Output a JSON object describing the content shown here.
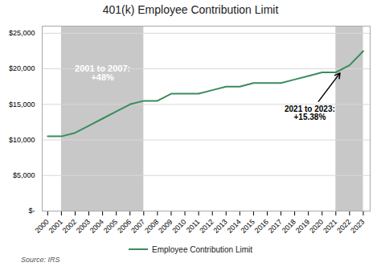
{
  "chart_data": {
    "type": "line",
    "title": "401(k) Employee Contribution Limit",
    "x": [
      2000,
      2001,
      2002,
      2003,
      2004,
      2005,
      2006,
      2007,
      2008,
      2009,
      2010,
      2011,
      2012,
      2013,
      2014,
      2015,
      2016,
      2017,
      2018,
      2019,
      2020,
      2021,
      2022,
      2023
    ],
    "series": [
      {
        "name": "Employee Contribution Limit",
        "color": "#3a8c5c",
        "values": [
          10500,
          10500,
          11000,
          12000,
          13000,
          14000,
          15000,
          15500,
          15500,
          16500,
          16500,
          16500,
          17000,
          17500,
          17500,
          18000,
          18000,
          18000,
          18500,
          19000,
          19500,
          19500,
          20500,
          22500
        ]
      }
    ],
    "xlim": [
      1999.6,
      2023.5
    ],
    "xticks": [
      2000,
      2001,
      2002,
      2003,
      2004,
      2005,
      2006,
      2007,
      2008,
      2009,
      2010,
      2011,
      2012,
      2013,
      2014,
      2015,
      2016,
      2017,
      2018,
      2019,
      2020,
      2021,
      2022,
      2023
    ],
    "ylim": [
      0,
      26000
    ],
    "yticks": [
      {
        "value": 0,
        "label": "$-"
      },
      {
        "value": 5000,
        "label": "$5,000"
      },
      {
        "value": 10000,
        "label": "$10,000"
      },
      {
        "value": 15000,
        "label": "$15,000"
      },
      {
        "value": 20000,
        "label": "$20,000"
      },
      {
        "value": 25000,
        "label": "$25,000"
      }
    ],
    "grid": true,
    "legend": "bottom",
    "shade_regions": [
      [
        2001,
        2007
      ],
      [
        2021,
        2023
      ]
    ],
    "shade_color": "#c8c8c8",
    "annotations": [
      {
        "text": "2001 to 2007:\n+48%",
        "x": 2004.0,
        "y": 20500
      },
      {
        "text": "2021 to 2023:\n+15.38%",
        "x": 2019.1,
        "y": 13800,
        "arrow_x": 2021.3,
        "arrow_y": 19400
      }
    ],
    "source": "Source: IRS"
  }
}
